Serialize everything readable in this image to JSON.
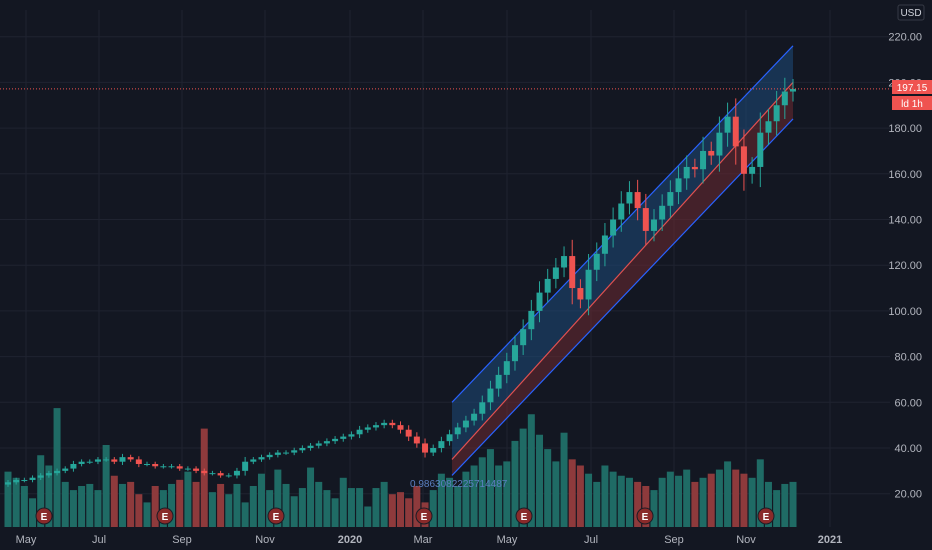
{
  "header": {
    "currency": "USD"
  },
  "price_badge": {
    "price": "197.15",
    "countdown": "ld 1h"
  },
  "regression": {
    "label": "0.9863082225714487"
  },
  "earnings_marker": "E",
  "colors": {
    "background": "#131722",
    "grid": "#1f2330",
    "up": "#26a69a",
    "down": "#ef5350",
    "up_volume": "#1f6b65",
    "down_volume": "#8e3a3c",
    "channel_upper_fill": "#1e4a7a",
    "channel_lower_fill": "#6e2a32",
    "channel_line": "#2962ff",
    "axis_text": "#b2b5be",
    "earnings": "#8a2a2a"
  },
  "chart_data": {
    "type": "candlestick",
    "ylabel": "",
    "currency": "USD",
    "ylim": [
      8,
      228
    ],
    "y_ticks": [
      "220.00",
      "200.00",
      "180.00",
      "160.00",
      "140.00",
      "120.00",
      "100.00",
      "80.00",
      "60.00",
      "40.00",
      "20.00"
    ],
    "x_ticks": [
      "May",
      "Jul",
      "Sep",
      "Nov",
      "2020",
      "Mar",
      "May",
      "Jul",
      "Sep",
      "Nov",
      "2021"
    ],
    "last_price": 197.15,
    "weekly_close": [
      25,
      26,
      26,
      27,
      28,
      29,
      30,
      31,
      33,
      34,
      34,
      35,
      35,
      34,
      36,
      35,
      33,
      33,
      32,
      32,
      32,
      31,
      31,
      30,
      29,
      29,
      28,
      28,
      30,
      34,
      35,
      36,
      37,
      38,
      38,
      39,
      40,
      41,
      42,
      43,
      44,
      45,
      46,
      48,
      49,
      50,
      51,
      50,
      48,
      45,
      42,
      38,
      40,
      43,
      46,
      49,
      52,
      55,
      60,
      66,
      72,
      78,
      85,
      92,
      100,
      108,
      114,
      119,
      124,
      110,
      105,
      118,
      125,
      133,
      140,
      147,
      152,
      145,
      135,
      140,
      146,
      152,
      158,
      163,
      162,
      170,
      168,
      178,
      185,
      172,
      160,
      163,
      178,
      183,
      190,
      196,
      197.15
    ],
    "volume": [
      27,
      24,
      20,
      14,
      35,
      30,
      58,
      22,
      18,
      20,
      21,
      18,
      40,
      25,
      21,
      22,
      16,
      12,
      20,
      18,
      21,
      23,
      27,
      22,
      48,
      17,
      21,
      16,
      21,
      12,
      20,
      26,
      18,
      28,
      21,
      15,
      19,
      29,
      22,
      18,
      14,
      24,
      19,
      19,
      10,
      19,
      22,
      16,
      17,
      14,
      20,
      12,
      18,
      26,
      24,
      20,
      27,
      30,
      34,
      38,
      30,
      32,
      42,
      48,
      55,
      45,
      38,
      32,
      46,
      33,
      30,
      26,
      22,
      30,
      27,
      25,
      24,
      22,
      20,
      18,
      24,
      27,
      25,
      28,
      22,
      24,
      26,
      28,
      32,
      28,
      26,
      24,
      33,
      22,
      18,
      21,
      22
    ],
    "earnings_dates": [
      "May",
      "Sep",
      "Nov",
      "Mar",
      "May",
      "Sep",
      "Nov"
    ]
  }
}
